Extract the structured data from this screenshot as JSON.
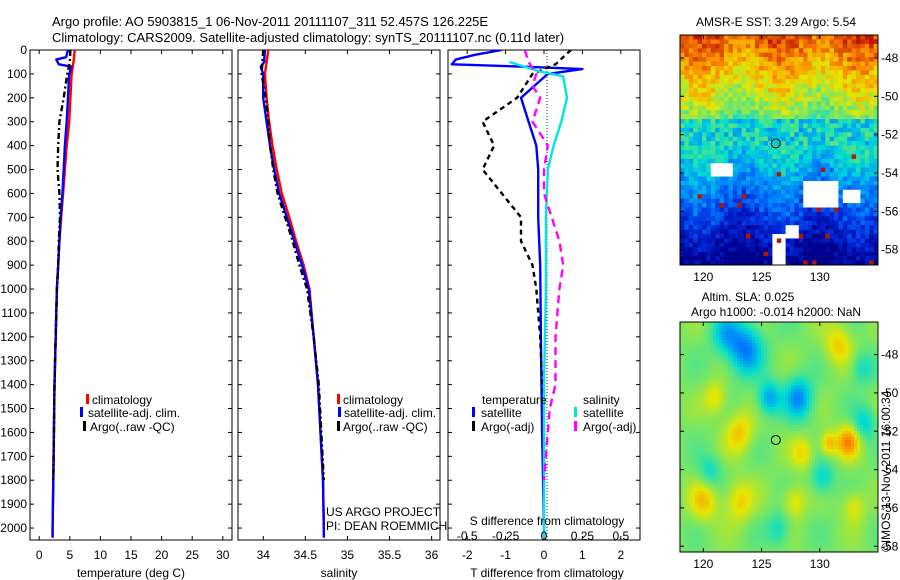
{
  "header": {
    "title_line1": "Argo profile: AO 5903815_1 06-Nov-2011 20111107_311 52.457S 126.225E",
    "title_line2": "Climatology: CARS2009. Satellite-adjusted climatology: synTS_20111107.nc (0.11d later)"
  },
  "colors": {
    "climatology": "#ff0000",
    "satellite": "#0000ff",
    "argo": "#000000",
    "sal_satellite": "#00e5e5",
    "sal_argo": "#ff00ff"
  },
  "depth_axis": {
    "ylim": [
      0,
      2050
    ],
    "ticks": [
      0,
      100,
      200,
      300,
      400,
      500,
      600,
      700,
      800,
      900,
      1000,
      1100,
      1200,
      1300,
      1400,
      1500,
      1600,
      1700,
      1800,
      1900,
      2000
    ],
    "tick_labels": [
      "0",
      "100",
      "200",
      "300",
      "400",
      "500",
      "600",
      "700",
      "800",
      "900",
      "1000",
      "1100",
      "1200",
      "1300",
      "1400",
      "1500",
      "1600",
      "1700",
      "1800",
      "1900",
      "2000"
    ]
  },
  "chart_data": [
    {
      "type": "line",
      "id": "temperature",
      "xlabel": "temperature (deg C)",
      "xlim": [
        -1.5,
        31.5
      ],
      "xticks": [
        0,
        5,
        10,
        15,
        20,
        25,
        30
      ],
      "xtick_labels": [
        "0",
        "5",
        "10",
        "15",
        "20",
        "25",
        "30"
      ],
      "legend": [
        "climatology",
        "satellite-adj. clim.",
        "Argo(..raw -QC)"
      ],
      "series": [
        {
          "name": "climatology",
          "color": "#ff0000",
          "dash": "",
          "points": [
            [
              5.8,
              0
            ],
            [
              5.6,
              50
            ],
            [
              5.3,
              100
            ],
            [
              5.1,
              200
            ],
            [
              4.9,
              300
            ],
            [
              4.5,
              400
            ],
            [
              4.2,
              500
            ],
            [
              3.9,
              600
            ],
            [
              3.6,
              700
            ],
            [
              3.3,
              800
            ],
            [
              3.1,
              900
            ],
            [
              2.9,
              1000
            ],
            [
              2.7,
              1200
            ],
            [
              2.5,
              1400
            ],
            [
              2.4,
              1600
            ],
            [
              2.3,
              1800
            ],
            [
              2.2,
              2000
            ],
            [
              2.2,
              2040
            ]
          ]
        },
        {
          "name": "satellite-adj. clim.",
          "color": "#0000ff",
          "dash": "",
          "points": [
            [
              4.7,
              0
            ],
            [
              4.4,
              30
            ],
            [
              2.8,
              40
            ],
            [
              3.2,
              60
            ],
            [
              5.3,
              70
            ],
            [
              4.9,
              100
            ],
            [
              4.7,
              200
            ],
            [
              4.5,
              300
            ],
            [
              4.2,
              400
            ],
            [
              4.0,
              500
            ],
            [
              3.8,
              600
            ],
            [
              3.5,
              700
            ],
            [
              3.3,
              800
            ],
            [
              3.1,
              900
            ],
            [
              2.9,
              1000
            ],
            [
              2.7,
              1200
            ],
            [
              2.5,
              1400
            ],
            [
              2.4,
              1600
            ],
            [
              2.3,
              1800
            ],
            [
              2.2,
              2000
            ],
            [
              2.2,
              2040
            ]
          ]
        },
        {
          "name": "Argo(..raw -QC)",
          "color": "#000000",
          "dash": "6,3,2,3",
          "points": [
            [
              5.1,
              0
            ],
            [
              5.0,
              50
            ],
            [
              4.6,
              100
            ],
            [
              4.0,
              200
            ],
            [
              3.3,
              300
            ],
            [
              3.1,
              400
            ],
            [
              3.0,
              500
            ],
            [
              3.3,
              600
            ],
            [
              3.4,
              700
            ],
            [
              3.2,
              800
            ],
            [
              3.1,
              900
            ],
            [
              2.9,
              1000
            ],
            [
              2.7,
              1200
            ],
            [
              2.5,
              1400
            ],
            [
              2.4,
              1600
            ],
            [
              2.3,
              1800
            ]
          ]
        }
      ]
    },
    {
      "type": "line",
      "id": "salinity",
      "xlabel": "salinity",
      "xlim": [
        33.7,
        36.1
      ],
      "xticks": [
        34,
        34.5,
        35,
        35.5,
        36
      ],
      "xtick_labels": [
        "34",
        "34.5",
        "35",
        "35.5",
        "36"
      ],
      "legend": [
        "climatology",
        "satellite-adj. clim.",
        "Argo(..raw -QC)"
      ],
      "series": [
        {
          "name": "climatology",
          "color": "#ff0000",
          "dash": "",
          "points": [
            [
              34.06,
              0
            ],
            [
              34.04,
              50
            ],
            [
              34.02,
              100
            ],
            [
              34.04,
              200
            ],
            [
              34.07,
              300
            ],
            [
              34.11,
              400
            ],
            [
              34.16,
              500
            ],
            [
              34.22,
              600
            ],
            [
              34.31,
              700
            ],
            [
              34.39,
              800
            ],
            [
              34.48,
              900
            ],
            [
              34.55,
              1000
            ],
            [
              34.6,
              1200
            ],
            [
              34.65,
              1400
            ],
            [
              34.68,
              1600
            ],
            [
              34.71,
              1800
            ],
            [
              34.72,
              2000
            ],
            [
              34.72,
              2040
            ]
          ]
        },
        {
          "name": "satellite-adj. clim.",
          "color": "#0000ff",
          "dash": "",
          "points": [
            [
              34.02,
              0
            ],
            [
              34.01,
              50
            ],
            [
              33.97,
              70
            ],
            [
              34.0,
              100
            ],
            [
              34.0,
              200
            ],
            [
              34.04,
              300
            ],
            [
              34.08,
              400
            ],
            [
              34.13,
              500
            ],
            [
              34.19,
              600
            ],
            [
              34.28,
              700
            ],
            [
              34.37,
              800
            ],
            [
              34.46,
              900
            ],
            [
              34.54,
              1000
            ],
            [
              34.6,
              1200
            ],
            [
              34.65,
              1400
            ],
            [
              34.68,
              1600
            ],
            [
              34.71,
              1800
            ],
            [
              34.72,
              2000
            ],
            [
              34.72,
              2040
            ]
          ]
        },
        {
          "name": "Argo(..raw -QC)",
          "color": "#000000",
          "dash": "6,3,2,3",
          "points": [
            [
              34.0,
              0
            ],
            [
              33.98,
              100
            ],
            [
              34.03,
              200
            ],
            [
              34.06,
              300
            ],
            [
              34.08,
              400
            ],
            [
              34.12,
              500
            ],
            [
              34.17,
              600
            ],
            [
              34.26,
              700
            ],
            [
              34.35,
              800
            ],
            [
              34.43,
              900
            ],
            [
              34.52,
              1000
            ],
            [
              34.6,
              1200
            ],
            [
              34.66,
              1400
            ],
            [
              34.69,
              1600
            ],
            [
              34.72,
              1800
            ]
          ]
        }
      ]
    },
    {
      "type": "line",
      "id": "difference",
      "xlabel": "T difference from climatology",
      "xlabel2": "S difference from climatology",
      "xlim": [
        -2.5,
        2.5
      ],
      "xticks": [
        -2,
        -1,
        0,
        1,
        2
      ],
      "xtick_labels": [
        "-2",
        "-1",
        "0",
        "1",
        "2"
      ],
      "s_xticks": [
        -2,
        -1,
        0,
        1,
        2
      ],
      "s_xtick_labels": [
        "-0.5",
        "-0.25",
        "0",
        "0.25",
        "0.5"
      ],
      "legend_groups": [
        "temperature",
        "salinity"
      ],
      "legend": [
        "satellite",
        "Argo(-adj)",
        "satellite",
        "Argo(-adj)"
      ],
      "series": [
        {
          "name": "satellite",
          "group": "temperature",
          "color": "#0000ff",
          "dash": "",
          "points": [
            [
              -1.1,
              0
            ],
            [
              -1.8,
              20
            ],
            [
              -2.3,
              40
            ],
            [
              -2.4,
              60
            ],
            [
              -0.5,
              70
            ],
            [
              1.0,
              80
            ],
            [
              0.1,
              100
            ],
            [
              -0.6,
              200
            ],
            [
              -0.4,
              300
            ],
            [
              -0.2,
              400
            ],
            [
              -0.15,
              500
            ],
            [
              -0.15,
              700
            ],
            [
              -0.1,
              900
            ],
            [
              -0.08,
              1200
            ],
            [
              -0.05,
              1600
            ],
            [
              0.0,
              2000
            ],
            [
              0.0,
              2040
            ]
          ]
        },
        {
          "name": "Argo(-adj)",
          "group": "temperature",
          "color": "#000000",
          "dash": "5,4",
          "points": [
            [
              0.7,
              0
            ],
            [
              0.3,
              60
            ],
            [
              -0.3,
              100
            ],
            [
              -0.7,
              200
            ],
            [
              -1.6,
              300
            ],
            [
              -1.3,
              400
            ],
            [
              -1.6,
              500
            ],
            [
              -1.1,
              600
            ],
            [
              -0.6,
              700
            ],
            [
              -0.6,
              800
            ],
            [
              -0.3,
              900
            ],
            [
              -0.2,
              1000
            ],
            [
              -0.1,
              1200
            ],
            [
              -0.05,
              1400
            ],
            [
              0.0,
              1600
            ],
            [
              0.0,
              1800
            ]
          ]
        },
        {
          "name": "satellite",
          "group": "salinity",
          "color": "#00e5e5",
          "dash": "",
          "points": [
            [
              -0.9,
              50
            ],
            [
              -0.1,
              90
            ],
            [
              0.5,
              110
            ],
            [
              0.6,
              200
            ],
            [
              0.45,
              300
            ],
            [
              0.25,
              400
            ],
            [
              0.1,
              500
            ],
            [
              0.05,
              700
            ],
            [
              0.05,
              1000
            ],
            [
              0.0,
              1400
            ],
            [
              0.0,
              1800
            ],
            [
              0.0,
              2040
            ]
          ]
        },
        {
          "name": "Argo(-adj)",
          "group": "salinity",
          "color": "#ff00ff",
          "dash": "8,5",
          "points": [
            [
              -0.5,
              0
            ],
            [
              -0.4,
              50
            ],
            [
              -0.2,
              100
            ],
            [
              -0.3,
              150
            ],
            [
              -0.1,
              200
            ],
            [
              -0.3,
              300
            ],
            [
              0.1,
              400
            ],
            [
              0.0,
              500
            ],
            [
              0.0,
              600
            ],
            [
              0.2,
              700
            ],
            [
              0.4,
              800
            ],
            [
              0.5,
              900
            ],
            [
              0.4,
              1000
            ],
            [
              0.35,
              1100
            ],
            [
              0.3,
              1200
            ],
            [
              0.3,
              1300
            ],
            [
              0.3,
              1400
            ],
            [
              0.15,
              1500
            ],
            [
              0.1,
              1600
            ],
            [
              0.0,
              1800
            ]
          ]
        }
      ]
    },
    {
      "type": "heatmap",
      "id": "sst-map",
      "title": "AMSR-E SST: 3.29 Argo: 5.54",
      "xlim": [
        118,
        135
      ],
      "ylim": [
        -58.8,
        -46.8
      ],
      "xticks": [
        120,
        125,
        130
      ],
      "xtick_labels": [
        "120",
        "125",
        "130"
      ],
      "yticks": [
        -48,
        -50,
        -52,
        -54,
        -56,
        -58
      ],
      "ytick_labels": [
        "-48",
        "-50",
        "-52",
        "-54",
        "-56",
        "-58"
      ],
      "marker": [
        126.225,
        -52.457
      ]
    },
    {
      "type": "heatmap",
      "id": "sla-map",
      "title_line1": "Altim. SLA: 0.025",
      "title_line2": "Argo h1000: -0.014 h2000: NaN",
      "xlim": [
        118,
        135
      ],
      "ylim": [
        -58.3,
        -46.3
      ],
      "xticks": [
        120,
        125,
        130
      ],
      "xtick_labels": [
        "120",
        "125",
        "130"
      ],
      "yticks": [
        -48,
        -50,
        -52,
        -54,
        -56,
        -58
      ],
      "ytick_labels": [
        "-48",
        "-50",
        "-52",
        "-54",
        "-56",
        "-58"
      ],
      "marker": [
        126.225,
        -52.457
      ]
    }
  ],
  "annotations": {
    "project_line1": "US ARGO PROJECT",
    "project_line2": "PI: DEAN ROEMMICH",
    "copyright": "©IMOS 13-Nov-2011 16:00:34"
  }
}
